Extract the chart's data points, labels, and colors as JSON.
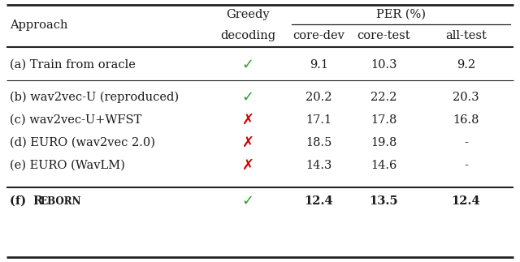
{
  "col_headers_row1": [
    "Greedy",
    "PER (%)"
  ],
  "col_headers_row2": [
    "Approach",
    "decoding",
    "core-dev",
    "core-test",
    "all-test"
  ],
  "rows": [
    {
      "label": "(a) Train from oracle",
      "greedy": "check_green",
      "core_dev": "9.1",
      "core_test": "10.3",
      "all_test": "9.2",
      "bold": false
    },
    {
      "label": "(b) wav2vec-U (reproduced)",
      "greedy": "check_green",
      "core_dev": "20.2",
      "core_test": "22.2",
      "all_test": "20.3",
      "bold": false
    },
    {
      "label": "(c) wav2vec-U+WFST",
      "greedy": "cross_red",
      "core_dev": "17.1",
      "core_test": "17.8",
      "all_test": "16.8",
      "bold": false
    },
    {
      "label": "(d) EURO (wav2vec 2.0)",
      "greedy": "cross_red",
      "core_dev": "18.5",
      "core_test": "19.8",
      "all_test": "-",
      "bold": false
    },
    {
      "label": "(e) EURO (WavLM)",
      "greedy": "cross_red",
      "core_dev": "14.3",
      "core_test": "14.6",
      "all_test": "-",
      "bold": false
    },
    {
      "label": "(f) REBORN",
      "greedy": "check_green",
      "core_dev": "12.4",
      "core_test": "13.5",
      "all_test": "12.4",
      "bold": true
    }
  ],
  "bg_color": "#ffffff",
  "text_color": "#1a1a1a",
  "green_color": "#2ca02c",
  "red_color": "#cc0000",
  "line_color": "#222222"
}
